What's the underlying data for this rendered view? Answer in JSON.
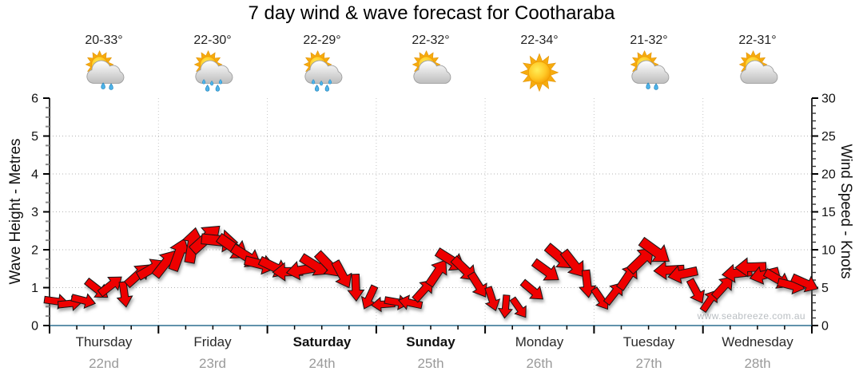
{
  "title": "7 day wind & wave forecast for Cootharaba",
  "watermark": "www.seabreeze.com.au",
  "days": [
    {
      "name": "Thursday",
      "date": "22nd",
      "temp": "20-33°",
      "icon": "sun-cloud-rain-light",
      "emphasis": false
    },
    {
      "name": "Friday",
      "date": "23rd",
      "temp": "22-30°",
      "icon": "sun-cloud-rain",
      "emphasis": false
    },
    {
      "name": "Saturday",
      "date": "24th",
      "temp": "22-29°",
      "icon": "sun-cloud-rain",
      "emphasis": true
    },
    {
      "name": "Sunday",
      "date": "25th",
      "temp": "22-32°",
      "icon": "sun-cloud",
      "emphasis": true
    },
    {
      "name": "Monday",
      "date": "26th",
      "temp": "22-34°",
      "icon": "sun",
      "emphasis": false
    },
    {
      "name": "Tuesday",
      "date": "27th",
      "temp": "21-32°",
      "icon": "sun-cloud-rain-light",
      "emphasis": false
    },
    {
      "name": "Wednesday",
      "date": "28th",
      "temp": "22-31°",
      "icon": "sun-cloud",
      "emphasis": false
    }
  ],
  "chart_data": {
    "type": "scatter",
    "subtype": "wind-direction-arrows",
    "title": "7 day wind & wave forecast for Cootharaba",
    "sample_interval_hours": 3,
    "left_axis": {
      "label": "Wave Height - Metres",
      "min": 0,
      "max": 6,
      "major_step": 1,
      "minor_step": 0.25
    },
    "right_axis": {
      "label": "Wind Speed - Knots",
      "min": 0,
      "max": 30,
      "major_step": 5,
      "minor_step": 1
    },
    "x_days": [
      "Thursday",
      "Friday",
      "Saturday",
      "Sunday",
      "Monday",
      "Tuesday",
      "Wednesday"
    ],
    "point_format": [
      "hours_from_start",
      "wind_speed_knots",
      "arrow_direction_deg_cw_from_east"
    ],
    "points": [
      [
        0,
        3.2,
        8
      ],
      [
        3,
        2.9,
        -6
      ],
      [
        6,
        3.3,
        14
      ],
      [
        9,
        4.8,
        38
      ],
      [
        12,
        5.3,
        -38
      ],
      [
        15,
        4.1,
        82
      ],
      [
        18,
        6.7,
        -42
      ],
      [
        21,
        7.5,
        -30
      ],
      [
        24,
        8.2,
        -52
      ],
      [
        27,
        9.4,
        -70
      ],
      [
        30,
        10.6,
        -80
      ],
      [
        33,
        11.5,
        -42
      ],
      [
        36,
        11.2,
        6
      ],
      [
        39,
        10.3,
        35
      ],
      [
        42,
        9.1,
        32
      ],
      [
        45,
        8.1,
        14
      ],
      [
        48,
        7.7,
        26
      ],
      [
        51,
        7.1,
        178
      ],
      [
        54,
        7.3,
        170
      ],
      [
        57,
        7.9,
        32
      ],
      [
        60,
        8.0,
        46
      ],
      [
        63,
        6.7,
        62
      ],
      [
        66,
        5.0,
        88
      ],
      [
        69,
        3.7,
        115
      ],
      [
        72,
        2.8,
        176
      ],
      [
        75,
        3.1,
        10
      ],
      [
        78,
        3.0,
        -168
      ],
      [
        81,
        4.7,
        -48
      ],
      [
        84,
        7.0,
        -56
      ],
      [
        87,
        8.6,
        32
      ],
      [
        90,
        7.4,
        44
      ],
      [
        93,
        5.3,
        58
      ],
      [
        96,
        3.5,
        72
      ],
      [
        99,
        2.5,
        95
      ],
      [
        102,
        2.3,
        55
      ],
      [
        105,
        4.6,
        40
      ],
      [
        108,
        7.2,
        36
      ],
      [
        111,
        9.0,
        40
      ],
      [
        114,
        8.1,
        52
      ],
      [
        117,
        5.5,
        84
      ],
      [
        120,
        3.5,
        56
      ],
      [
        123,
        4.3,
        -52
      ],
      [
        126,
        6.5,
        -56
      ],
      [
        129,
        8.7,
        -44
      ],
      [
        132,
        9.8,
        36
      ],
      [
        135,
        7.3,
        177
      ],
      [
        138,
        6.8,
        168
      ],
      [
        141,
        4.5,
        62
      ],
      [
        144,
        3.3,
        -56
      ],
      [
        147,
        5.1,
        -48
      ],
      [
        150,
        6.9,
        174
      ],
      [
        153,
        7.7,
        178
      ],
      [
        156,
        6.7,
        166
      ],
      [
        159,
        6.1,
        30
      ],
      [
        162,
        5.3,
        14
      ],
      [
        165,
        5.6,
        24
      ]
    ],
    "grid": {
      "horizontal_dotted_at_metres": [
        1,
        2,
        3,
        4,
        5
      ],
      "vertical_dotted_at_day_boundaries": true
    },
    "colors": {
      "arrow": "#ee0000",
      "arrow_outline": "#141414",
      "baseline": "#2d6e8f",
      "grid": "#b3b3b3",
      "day_separator": "#c6c6c6",
      "tick": "#111111",
      "date_text": "#9a9a9a",
      "watermark": "#b9bec2"
    }
  }
}
